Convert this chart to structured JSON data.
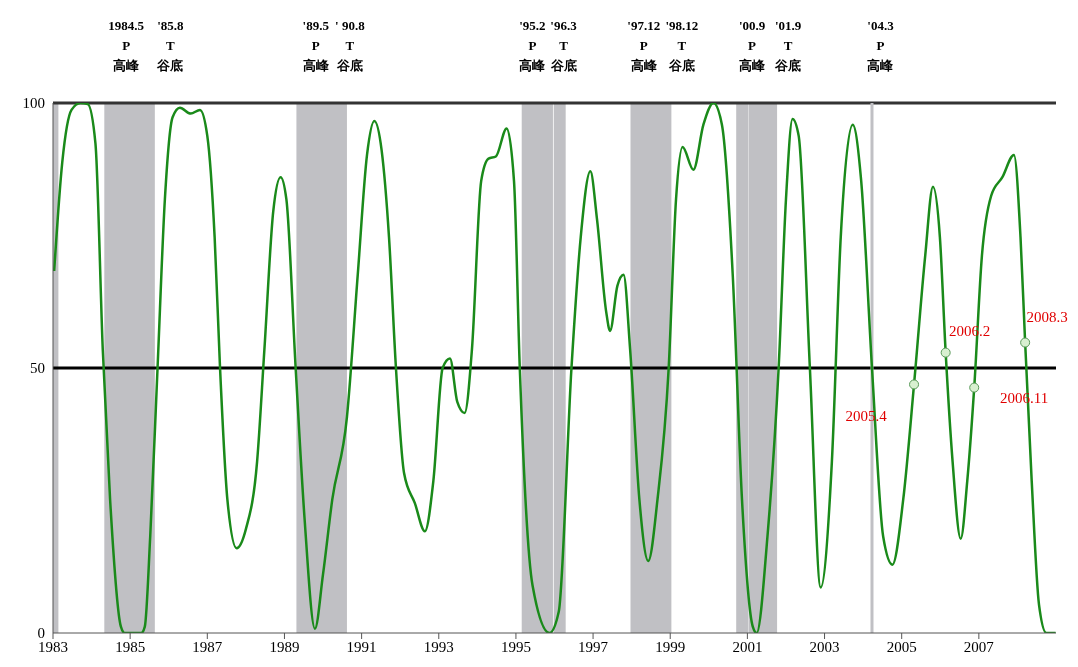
{
  "chart_data": {
    "type": "line",
    "xlim": [
      1983,
      2009
    ],
    "xticks": [
      1983,
      1985,
      1987,
      1989,
      1991,
      1993,
      1995,
      1997,
      1999,
      2001,
      2003,
      2005,
      2007
    ],
    "ylim": [
      0,
      100
    ],
    "yticks": [
      0,
      50,
      100
    ],
    "grid": false,
    "marker": "none",
    "line_style": "solid",
    "series": [
      {
        "color": "#1a8a1a",
        "x": [
          1983.03,
          1983.24,
          1983.48,
          1983.71,
          1983.9,
          1984.1,
          1984.29,
          1984.48,
          1984.76,
          1984.86,
          1985.29,
          1985.38,
          1985.52,
          1985.71,
          1985.9,
          1986.1,
          1986.29,
          1986.57,
          1986.81,
          1987.0,
          1987.19,
          1987.33,
          1987.52,
          1987.76,
          1988.0,
          1988.29,
          1988.48,
          1988.71,
          1988.9,
          1989.05,
          1989.29,
          1989.52,
          1989.79,
          1990.0,
          1990.24,
          1990.62,
          1990.9,
          1991.14,
          1991.33,
          1991.52,
          1991.71,
          1991.89,
          1992.1,
          1992.38,
          1992.64,
          1992.86,
          1993.1,
          1993.29,
          1993.48,
          1993.67,
          1993.86,
          1994.1,
          1994.29,
          1994.48,
          1994.76,
          1994.95,
          1995.1,
          1995.43,
          1995.87,
          1996.11,
          1996.44,
          1996.68,
          1996.93,
          1997.1,
          1997.34,
          1997.44,
          1997.63,
          1997.79,
          1997.96,
          1998.2,
          1998.43,
          1998.67,
          1998.96,
          1999.15,
          1999.32,
          1999.6,
          1999.86,
          2000.12,
          2000.34,
          2000.62,
          2000.86,
          2001.14,
          2001.24,
          2001.52,
          2001.81,
          2002.0,
          2002.17,
          2002.33,
          2002.62,
          2002.9,
          2003.19,
          2003.42,
          2003.73,
          2003.95,
          2004.23,
          2004.52,
          2004.76,
          2005.04,
          2005.32,
          2005.61,
          2005.81,
          2005.99,
          2006.14,
          2006.32,
          2006.53,
          2006.7,
          2006.88,
          2007.08,
          2007.32,
          2007.61,
          2007.91,
          2008.08,
          2008.2,
          2008.37,
          2008.56,
          2008.75,
          2008.99
        ],
        "values": [
          68.3,
          88.8,
          98.7,
          100,
          99.8,
          92.4,
          53.5,
          25.2,
          1.2,
          0,
          0,
          1.2,
          18.2,
          50,
          81.8,
          97.3,
          99.1,
          98.0,
          98.7,
          93.8,
          74.7,
          50,
          25.2,
          16.0,
          19.6,
          32.3,
          53.5,
          79.6,
          86.0,
          81.8,
          50,
          21.7,
          0.8,
          11.1,
          25.2,
          40.8,
          67.6,
          90.2,
          96.6,
          91.0,
          74.7,
          50,
          30.2,
          24.5,
          19.2,
          28.7,
          50,
          51.8,
          43.6,
          41.5,
          53.5,
          85.3,
          89.5,
          89.9,
          95.2,
          85.3,
          50,
          9.0,
          0,
          4.0,
          50,
          74.7,
          87.1,
          78.2,
          60.6,
          57.0,
          65.5,
          67.6,
          53.5,
          25.2,
          13.6,
          25.2,
          50,
          81.8,
          91.7,
          87.4,
          95.9,
          100,
          95.9,
          67.6,
          25.2,
          1.2,
          0,
          18.2,
          50,
          81.8,
          97.0,
          93.8,
          50,
          8.6,
          32.3,
          74.7,
          95.9,
          85.3,
          50,
          18.2,
          12.9,
          25.2,
          46.9,
          71.2,
          84.2,
          74.7,
          52.9,
          32.3,
          17.8,
          28.7,
          46.3,
          71.2,
          82.5,
          86.0,
          90.2,
          74.7,
          54.8,
          28.7,
          5.3,
          0,
          0
        ]
      },
      {
        "type": "scatter",
        "color": "#d8f0d0",
        "marker": "circle",
        "x": [
          2005.32,
          2006.14,
          2006.88,
          2008.2
        ],
        "values": [
          46.9,
          52.9,
          46.3,
          54.8
        ]
      }
    ],
    "bands": [
      {
        "axis": "x",
        "from": 1983,
        "to": 1983.14,
        "color": "#c0c0c4"
      },
      {
        "axis": "x",
        "from": 1984.33,
        "to": 1985.64,
        "color": "#c0c0c4"
      },
      {
        "axis": "x",
        "from": 1989.31,
        "to": 1990.62,
        "color": "#c0c0c4"
      },
      {
        "axis": "x",
        "from": 1995.15,
        "to": 1995.96,
        "color": "#c0c0c4"
      },
      {
        "axis": "x",
        "from": 1995.98,
        "to": 1996.29,
        "color": "#c0c0c4"
      },
      {
        "axis": "x",
        "from": 1997.97,
        "to": 1999.03,
        "color": "#c0c0c4"
      },
      {
        "axis": "x",
        "from": 2000.71,
        "to": 2001.03,
        "color": "#c0c0c4"
      },
      {
        "axis": "x",
        "from": 2001.04,
        "to": 2001.77,
        "color": "#c0c0c4"
      }
    ],
    "ref_lines": [
      {
        "axis": "y",
        "value": 50,
        "color": "#000000"
      },
      {
        "axis": "y",
        "value": 100,
        "color": "#333333"
      },
      {
        "axis": "x",
        "value": 2004.23,
        "color": "#c0c0c4"
      }
    ],
    "annotations": [
      "1984.5\nP\n高峰",
      "'85.8\nT\n谷底",
      "'89.5\nP\n高峰",
      "' 90.8\nT\n谷底",
      "'95.2\nP\n高峰",
      "'96.3\nT\n谷底",
      "'97.12\nP\n高峰",
      "'98.12\nT\n谷底",
      "'00.9\nP\n高峰",
      "'01.9\nT\n谷底",
      "'04.3\nP\n高峰",
      {
        "text": "2005.4",
        "x": 2005.32,
        "y": 46.9
      },
      {
        "text": "2006.2",
        "x": 2006.14,
        "y": 52.9
      },
      {
        "text": "2006.11",
        "x": 2006.88,
        "y": 46.3
      },
      {
        "text": "2008.3",
        "x": 2008.2,
        "y": 54.8
      }
    ]
  }
}
